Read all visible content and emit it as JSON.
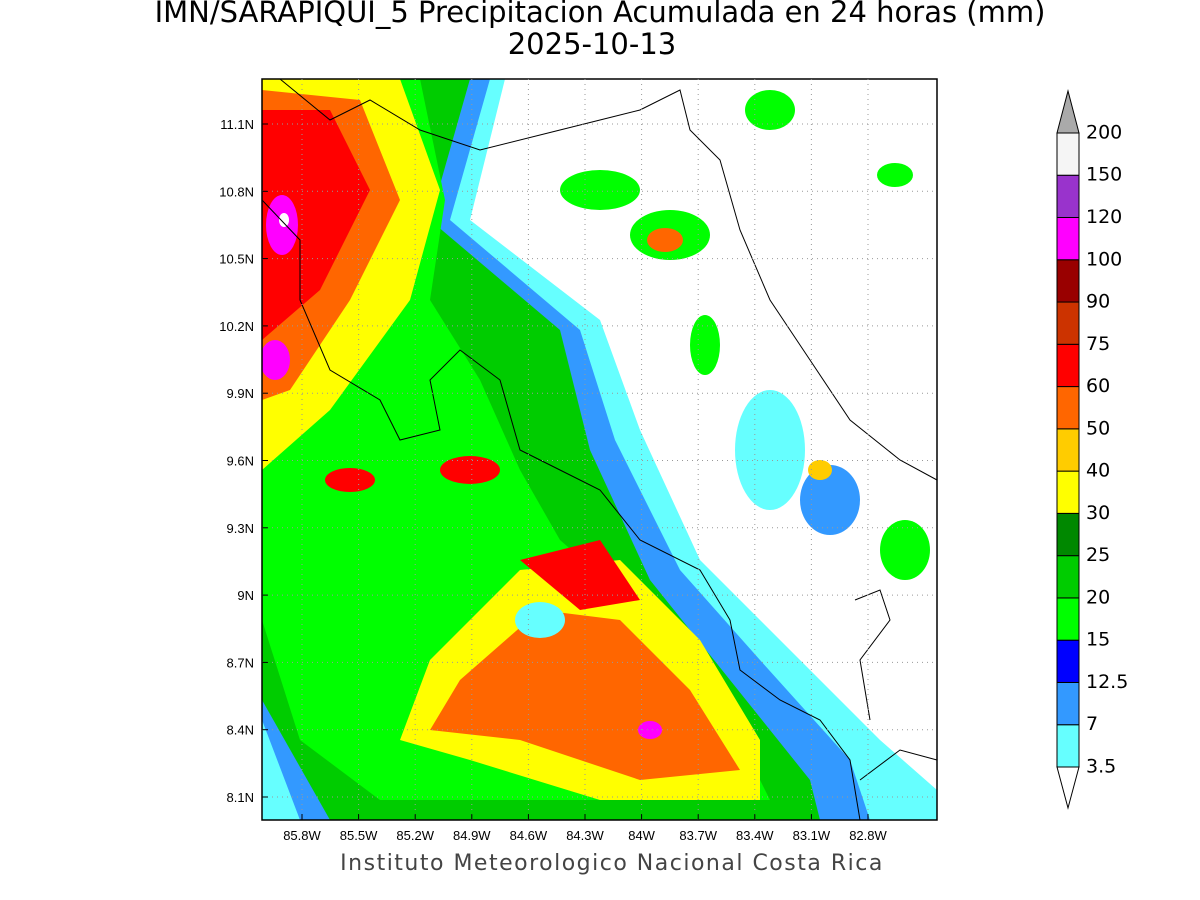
{
  "title": "IMN/SARAPIQUI_5 Precipitacion Acumulada en 24 horas (mm)",
  "subtitle": "2025-10-13",
  "map": {
    "xticks": [
      "85.8W",
      "85.5W",
      "85.2W",
      "84.9W",
      "84.6W",
      "84.3W",
      "84W",
      "83.7W",
      "83.4W",
      "83.1W",
      "82.8W"
    ],
    "yticks": [
      "11.1N",
      "10.8N",
      "10.5N",
      "10.2N",
      "9.9N",
      "9.6N",
      "9.3N",
      "9N",
      "8.7N",
      "8.4N",
      "8.1N"
    ]
  },
  "colorbar": {
    "labels": [
      "3.5",
      "7",
      "12.5",
      "15",
      "20",
      "25",
      "30",
      "40",
      "50",
      "60",
      "75",
      "90",
      "100",
      "120",
      "150",
      "200"
    ],
    "colors": [
      "#66ffff",
      "#3399ff",
      "#0000ff",
      "#00ff00",
      "#00cc00",
      "#008800",
      "#ffff00",
      "#ffcc00",
      "#ff6600",
      "#ff0000",
      "#cc3300",
      "#990000",
      "#ff00ff",
      "#9933cc",
      "#f5f5f5"
    ],
    "under_color": "#ffffff",
    "over_color": "#aaaaaa"
  },
  "footer": "Instituto Meteorologico Nacional Costa Rica"
}
